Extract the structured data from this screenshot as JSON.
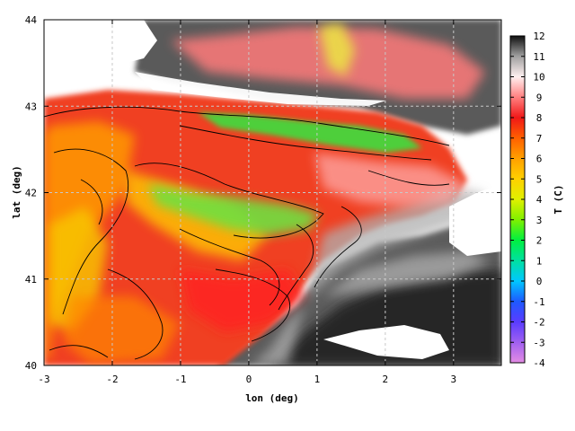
{
  "chart_data": {
    "type": "heatmap",
    "title": "",
    "xlabel": "lon (deg)",
    "ylabel": "lat (deg)",
    "xlim": [
      -3,
      3.7
    ],
    "ylim": [
      40,
      44
    ],
    "x_ticks": [
      -3,
      -2,
      -1,
      0,
      1,
      2,
      3
    ],
    "y_ticks": [
      40,
      41,
      42,
      43,
      44
    ],
    "grid": true,
    "colorbar": {
      "label": "T (C)",
      "min": -4,
      "max": 12,
      "ticks": [
        -4,
        -3,
        -2,
        -1,
        0,
        1,
        2,
        3,
        4,
        5,
        6,
        7,
        8,
        9,
        10,
        11,
        12
      ],
      "stops": [
        {
          "value": -4,
          "color": "#e48ce4"
        },
        {
          "value": -3,
          "color": "#a060f0"
        },
        {
          "value": -2,
          "color": "#5a3cff"
        },
        {
          "value": -1,
          "color": "#1e5aff"
        },
        {
          "value": 0,
          "color": "#00c8ff"
        },
        {
          "value": 1,
          "color": "#00e0a0"
        },
        {
          "value": 2,
          "color": "#00f040"
        },
        {
          "value": 3,
          "color": "#80f000"
        },
        {
          "value": 4,
          "color": "#e0f000"
        },
        {
          "value": 5,
          "color": "#ffd000"
        },
        {
          "value": 6,
          "color": "#ffa000"
        },
        {
          "value": 7,
          "color": "#ff6000"
        },
        {
          "value": 8,
          "color": "#f01818"
        },
        {
          "value": 9,
          "color": "#ff8080"
        },
        {
          "value": 10,
          "color": "#fff0f0"
        },
        {
          "value": 11,
          "color": "#a0a0a0"
        },
        {
          "value": 12,
          "color": "#101010"
        }
      ]
    }
  }
}
